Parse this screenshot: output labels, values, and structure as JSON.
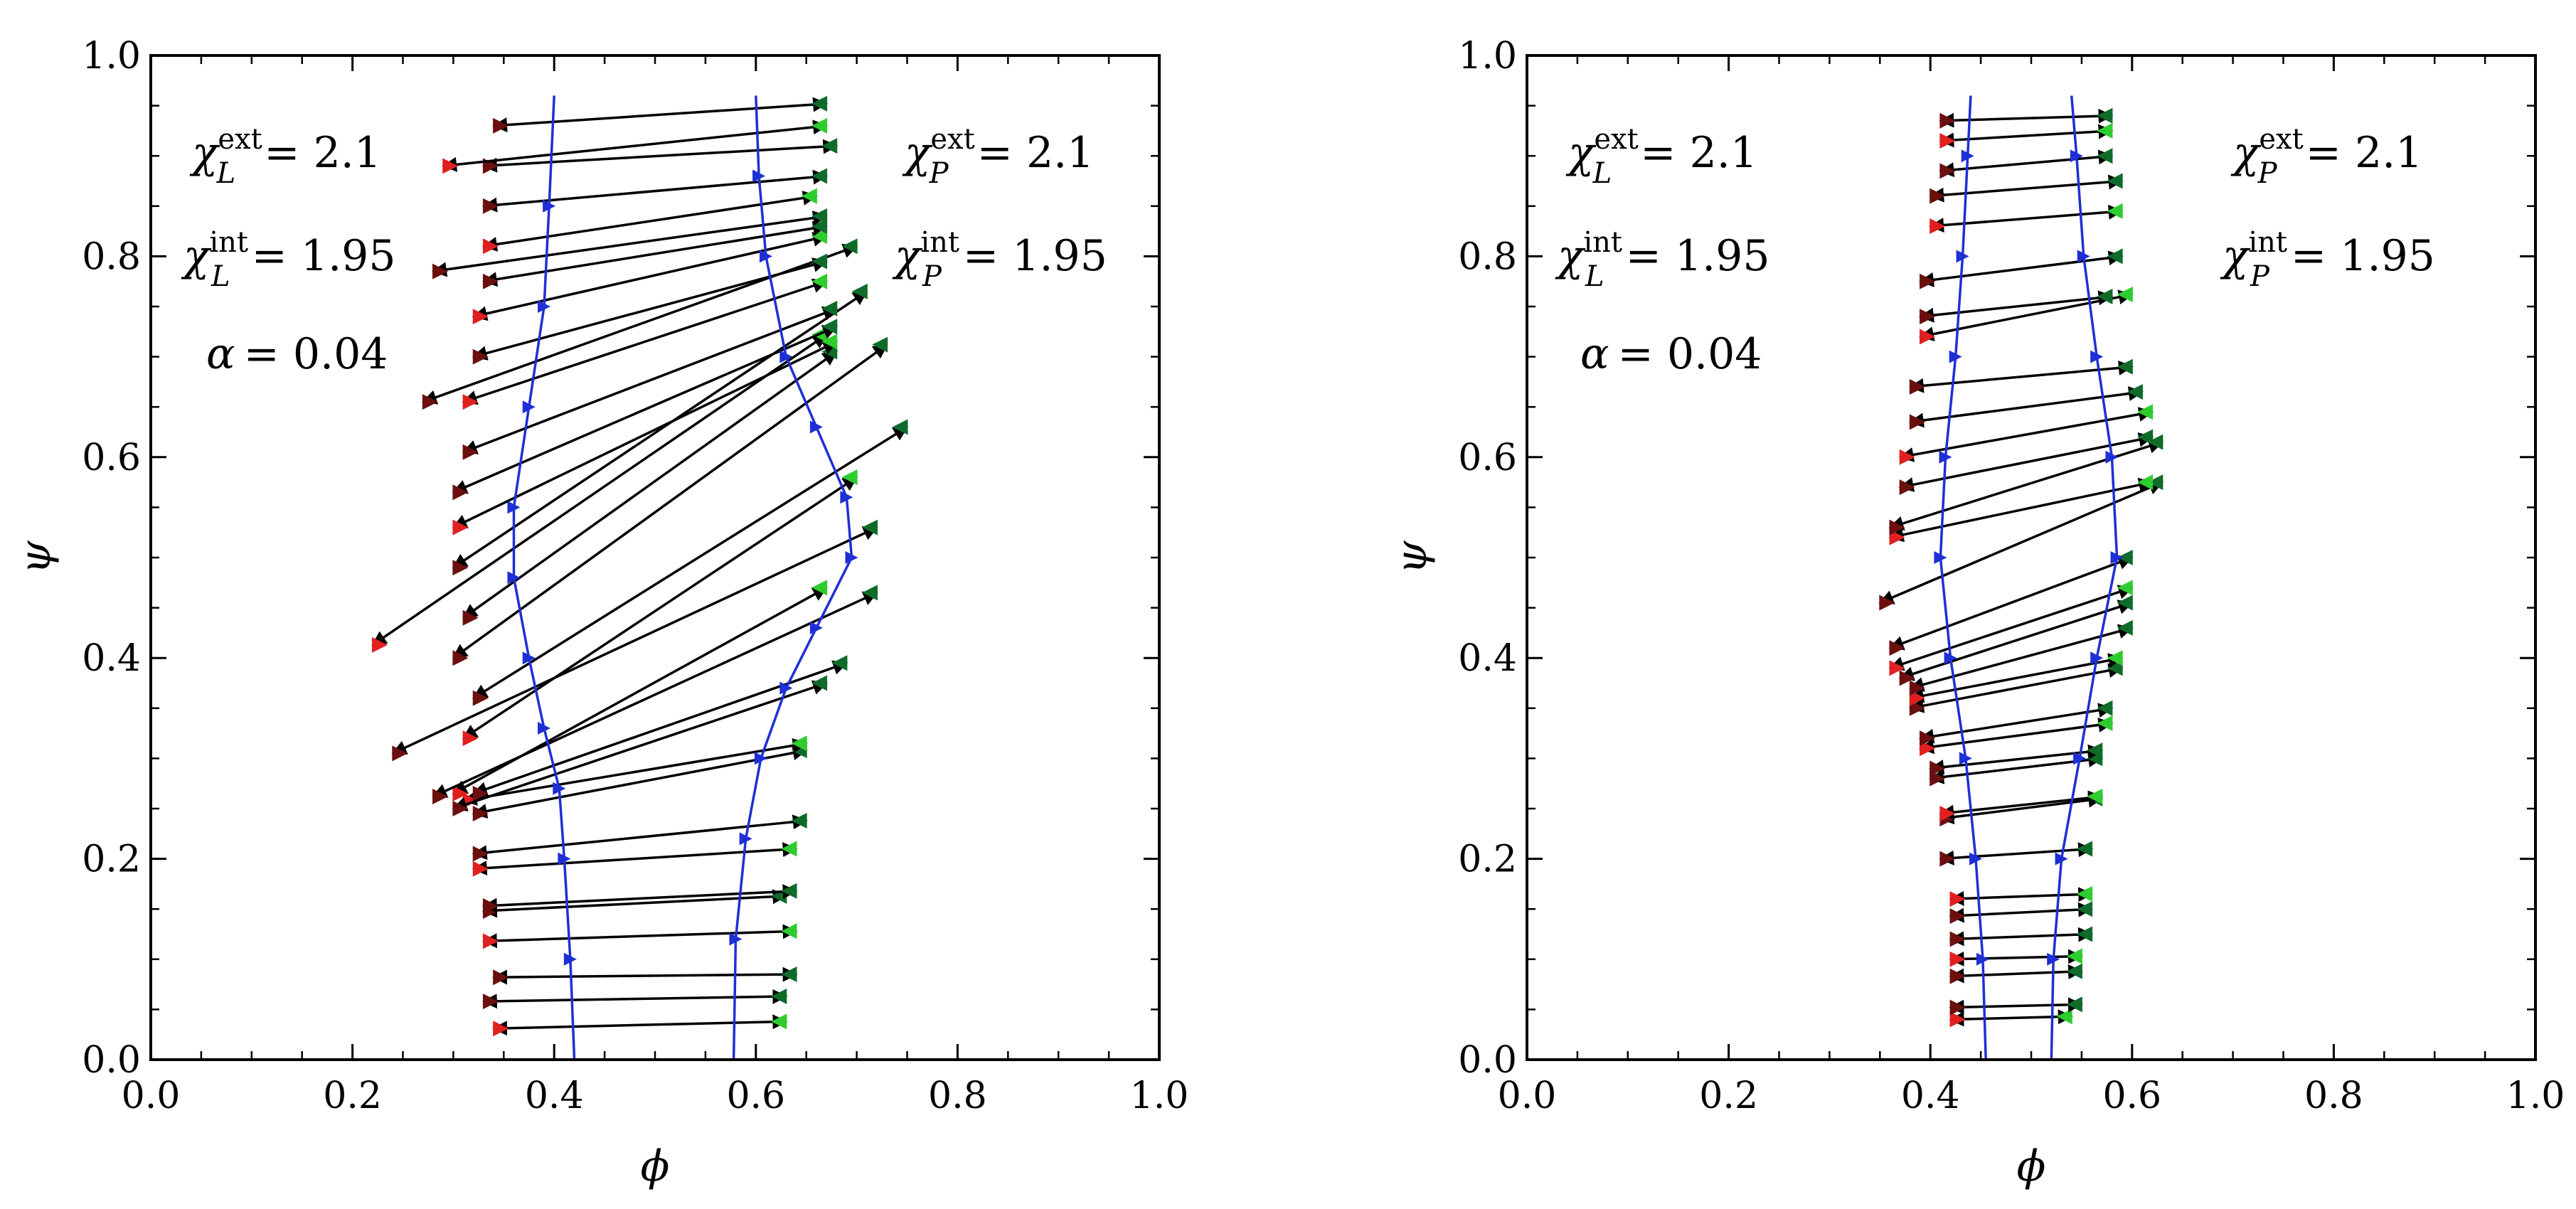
{
  "chart_data": [
    {
      "type": "scatter",
      "panel": "left",
      "xlabel": "ϕ",
      "ylabel": "ψ",
      "xlim": [
        0,
        1
      ],
      "ylim": [
        0,
        1
      ],
      "xticks": [
        "0.0",
        "0.2",
        "0.4",
        "0.6",
        "0.8",
        "1.0"
      ],
      "yticks": [
        "0.0",
        "0.2",
        "0.4",
        "0.6",
        "0.8",
        "1.0"
      ],
      "annotations": {
        "chi_L_ext": {
          "sym": "χ",
          "sup": "ext",
          "sub": "L",
          "value": "= 2.1"
        },
        "chi_L_int": {
          "sym": "χ",
          "sup": "int",
          "sub": "L",
          "value": "= 1.95"
        },
        "alpha": {
          "sym": "α",
          "value": "= 0.04"
        },
        "chi_P_ext": {
          "sym": "χ",
          "sup": "ext",
          "sub": "P",
          "value": "= 2.1"
        },
        "chi_P_int": {
          "sym": "χ",
          "sup": "int",
          "sub": "P",
          "value": "= 1.95"
        }
      },
      "binodal_left": [
        [
          0.42,
          0.0
        ],
        [
          0.416,
          0.1
        ],
        [
          0.41,
          0.2
        ],
        [
          0.405,
          0.27
        ],
        [
          0.39,
          0.33
        ],
        [
          0.375,
          0.4
        ],
        [
          0.36,
          0.48
        ],
        [
          0.36,
          0.55
        ],
        [
          0.375,
          0.65
        ],
        [
          0.39,
          0.75
        ],
        [
          0.395,
          0.85
        ],
        [
          0.4,
          0.96
        ]
      ],
      "binodal_right": [
        [
          0.578,
          0.0
        ],
        [
          0.58,
          0.12
        ],
        [
          0.59,
          0.22
        ],
        [
          0.605,
          0.3
        ],
        [
          0.63,
          0.37
        ],
        [
          0.66,
          0.43
        ],
        [
          0.695,
          0.5
        ],
        [
          0.69,
          0.56
        ],
        [
          0.66,
          0.63
        ],
        [
          0.63,
          0.7
        ],
        [
          0.61,
          0.8
        ],
        [
          0.603,
          0.88
        ],
        [
          0.6,
          0.96
        ]
      ],
      "tie_lines": [
        [
          0.34,
          0.031,
          0.63,
          0.038
        ],
        [
          0.33,
          0.058,
          0.63,
          0.063
        ],
        [
          0.34,
          0.082,
          0.64,
          0.085
        ],
        [
          0.33,
          0.118,
          0.64,
          0.128
        ],
        [
          0.33,
          0.148,
          0.63,
          0.163
        ],
        [
          0.33,
          0.153,
          0.64,
          0.168
        ],
        [
          0.32,
          0.19,
          0.64,
          0.21
        ],
        [
          0.32,
          0.205,
          0.65,
          0.238
        ],
        [
          0.32,
          0.245,
          0.65,
          0.308
        ],
        [
          0.31,
          0.258,
          0.65,
          0.315
        ],
        [
          0.3,
          0.25,
          0.67,
          0.375
        ],
        [
          0.32,
          0.265,
          0.69,
          0.395
        ],
        [
          0.3,
          0.265,
          0.67,
          0.47
        ],
        [
          0.28,
          0.262,
          0.72,
          0.465
        ],
        [
          0.24,
          0.305,
          0.72,
          0.53
        ],
        [
          0.31,
          0.32,
          0.7,
          0.58
        ],
        [
          0.32,
          0.36,
          0.75,
          0.63
        ],
        [
          0.3,
          0.4,
          0.73,
          0.712
        ],
        [
          0.22,
          0.413,
          0.67,
          0.722
        ],
        [
          0.31,
          0.44,
          0.68,
          0.705
        ],
        [
          0.3,
          0.49,
          0.71,
          0.765
        ],
        [
          0.3,
          0.53,
          0.68,
          0.715
        ],
        [
          0.3,
          0.565,
          0.68,
          0.73
        ],
        [
          0.31,
          0.605,
          0.68,
          0.748
        ],
        [
          0.31,
          0.655,
          0.67,
          0.775
        ],
        [
          0.27,
          0.655,
          0.7,
          0.81
        ],
        [
          0.32,
          0.7,
          0.67,
          0.795
        ],
        [
          0.32,
          0.74,
          0.67,
          0.82
        ],
        [
          0.33,
          0.775,
          0.67,
          0.83
        ],
        [
          0.28,
          0.785,
          0.67,
          0.84
        ],
        [
          0.33,
          0.81,
          0.66,
          0.86
        ],
        [
          0.33,
          0.85,
          0.67,
          0.88
        ],
        [
          0.33,
          0.89,
          0.68,
          0.91
        ],
        [
          0.29,
          0.89,
          0.67,
          0.93
        ],
        [
          0.34,
          0.93,
          0.67,
          0.952
        ]
      ]
    },
    {
      "type": "scatter",
      "panel": "right",
      "xlabel": "ϕ",
      "ylabel": "ψ",
      "xlim": [
        0,
        1
      ],
      "ylim": [
        0,
        1
      ],
      "xticks": [
        "0.0",
        "0.2",
        "0.4",
        "0.6",
        "0.8",
        "1.0"
      ],
      "yticks": [
        "0.0",
        "0.2",
        "0.4",
        "0.6",
        "0.8",
        "1.0"
      ],
      "annotations": {
        "chi_L_ext": {
          "sym": "χ",
          "sup": "ext",
          "sub": "L",
          "value": "= 2.1"
        },
        "chi_L_int": {
          "sym": "χ",
          "sup": "int",
          "sub": "L",
          "value": "= 1.95"
        },
        "alpha": {
          "sym": "α",
          "value": "= 0.04"
        },
        "chi_P_ext": {
          "sym": "χ",
          "sup": "ext",
          "sub": "P",
          "value": "= 2.1"
        },
        "chi_P_int": {
          "sym": "χ",
          "sup": "int",
          "sub": "P",
          "value": "= 1.95"
        }
      },
      "binodal_left": [
        [
          0.455,
          0.0
        ],
        [
          0.452,
          0.1
        ],
        [
          0.445,
          0.2
        ],
        [
          0.435,
          0.3
        ],
        [
          0.42,
          0.4
        ],
        [
          0.41,
          0.5
        ],
        [
          0.415,
          0.6
        ],
        [
          0.425,
          0.7
        ],
        [
          0.432,
          0.8
        ],
        [
          0.437,
          0.9
        ],
        [
          0.44,
          0.96
        ]
      ],
      "binodal_right": [
        [
          0.52,
          0.0
        ],
        [
          0.522,
          0.1
        ],
        [
          0.53,
          0.2
        ],
        [
          0.548,
          0.3
        ],
        [
          0.565,
          0.4
        ],
        [
          0.585,
          0.5
        ],
        [
          0.58,
          0.6
        ],
        [
          0.565,
          0.7
        ],
        [
          0.552,
          0.8
        ],
        [
          0.545,
          0.9
        ],
        [
          0.54,
          0.96
        ]
      ],
      "tie_lines": [
        [
          0.42,
          0.04,
          0.54,
          0.043
        ],
        [
          0.42,
          0.052,
          0.55,
          0.055
        ],
        [
          0.42,
          0.083,
          0.55,
          0.088
        ],
        [
          0.42,
          0.1,
          0.55,
          0.103
        ],
        [
          0.42,
          0.12,
          0.56,
          0.125
        ],
        [
          0.42,
          0.143,
          0.56,
          0.15
        ],
        [
          0.42,
          0.16,
          0.56,
          0.165
        ],
        [
          0.41,
          0.2,
          0.56,
          0.21
        ],
        [
          0.41,
          0.24,
          0.57,
          0.26
        ],
        [
          0.41,
          0.245,
          0.57,
          0.262
        ],
        [
          0.4,
          0.28,
          0.57,
          0.3
        ],
        [
          0.4,
          0.29,
          0.57,
          0.308
        ],
        [
          0.39,
          0.31,
          0.58,
          0.335
        ],
        [
          0.39,
          0.32,
          0.58,
          0.35
        ],
        [
          0.38,
          0.35,
          0.59,
          0.39
        ],
        [
          0.38,
          0.36,
          0.59,
          0.4
        ],
        [
          0.38,
          0.37,
          0.6,
          0.43
        ],
        [
          0.37,
          0.38,
          0.6,
          0.455
        ],
        [
          0.36,
          0.39,
          0.6,
          0.47
        ],
        [
          0.36,
          0.41,
          0.6,
          0.5
        ],
        [
          0.35,
          0.455,
          0.63,
          0.575
        ],
        [
          0.36,
          0.52,
          0.62,
          0.575
        ],
        [
          0.36,
          0.53,
          0.63,
          0.615
        ],
        [
          0.37,
          0.57,
          0.62,
          0.62
        ],
        [
          0.37,
          0.6,
          0.62,
          0.645
        ],
        [
          0.38,
          0.635,
          0.61,
          0.665
        ],
        [
          0.38,
          0.67,
          0.6,
          0.69
        ],
        [
          0.39,
          0.72,
          0.6,
          0.762
        ],
        [
          0.39,
          0.74,
          0.58,
          0.76
        ],
        [
          0.39,
          0.775,
          0.59,
          0.8
        ],
        [
          0.4,
          0.83,
          0.59,
          0.845
        ],
        [
          0.4,
          0.86,
          0.59,
          0.875
        ],
        [
          0.41,
          0.885,
          0.58,
          0.9
        ],
        [
          0.41,
          0.915,
          0.58,
          0.925
        ],
        [
          0.41,
          0.935,
          0.58,
          0.94
        ]
      ]
    }
  ]
}
